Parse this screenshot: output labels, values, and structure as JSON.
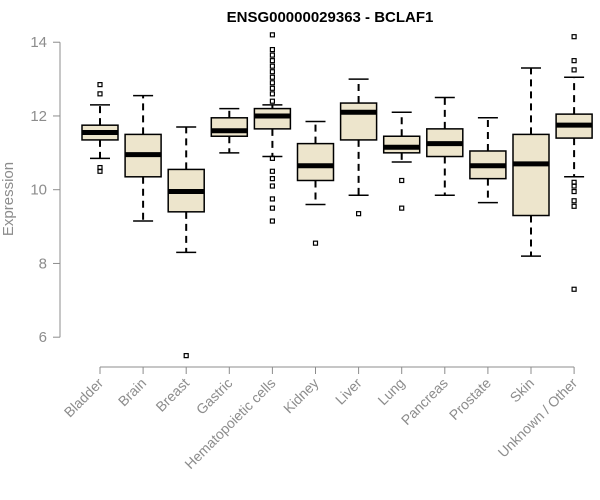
{
  "chart_data": {
    "type": "boxplot",
    "title": "ENSG00000029363 - BCLAF1",
    "ylabel": "Expression",
    "xlabel": "",
    "ylim": [
      5.3,
      14.25
    ],
    "yticks": [
      6,
      8,
      10,
      12,
      14
    ],
    "box_color": "#ede5cc",
    "line_color": "#000000",
    "axis_color": "#8c8c8c",
    "categories": [
      "Bladder",
      "Brain",
      "Breast",
      "Gastric",
      "Hematopoietic cells",
      "Kidney",
      "Liver",
      "Lung",
      "Pancreas",
      "Prostate",
      "Skin",
      "Unknown / Other"
    ],
    "boxes": [
      {
        "whisker_low": 10.85,
        "q1": 11.35,
        "median": 11.55,
        "q3": 11.75,
        "whisker_high": 12.3,
        "outliers": [
          10.5,
          10.6,
          12.6,
          12.85
        ]
      },
      {
        "whisker_low": 9.15,
        "q1": 10.35,
        "median": 10.95,
        "q3": 11.5,
        "whisker_high": 12.55,
        "outliers": []
      },
      {
        "whisker_low": 8.3,
        "q1": 9.4,
        "median": 9.95,
        "q3": 10.55,
        "whisker_high": 11.7,
        "outliers": [
          5.5
        ]
      },
      {
        "whisker_low": 11.0,
        "q1": 11.45,
        "median": 11.6,
        "q3": 11.95,
        "whisker_high": 12.2,
        "outliers": []
      },
      {
        "whisker_low": 10.9,
        "q1": 11.65,
        "median": 12.0,
        "q3": 12.2,
        "whisker_high": 12.3,
        "outliers": [
          9.15,
          9.5,
          9.75,
          10.1,
          10.3,
          10.5,
          10.85,
          12.4,
          12.6,
          12.75,
          12.9,
          13.05,
          13.2,
          13.35,
          13.5,
          13.65,
          13.8,
          14.2
        ]
      },
      {
        "whisker_low": 9.6,
        "q1": 10.25,
        "median": 10.65,
        "q3": 11.25,
        "whisker_high": 11.85,
        "outliers": [
          8.55
        ]
      },
      {
        "whisker_low": 9.85,
        "q1": 11.35,
        "median": 12.1,
        "q3": 12.35,
        "whisker_high": 13.0,
        "outliers": [
          9.35
        ]
      },
      {
        "whisker_low": 10.75,
        "q1": 11.0,
        "median": 11.15,
        "q3": 11.45,
        "whisker_high": 12.1,
        "outliers": [
          9.5,
          10.25
        ]
      },
      {
        "whisker_low": 9.85,
        "q1": 10.9,
        "median": 11.25,
        "q3": 11.65,
        "whisker_high": 12.5,
        "outliers": []
      },
      {
        "whisker_low": 9.65,
        "q1": 10.3,
        "median": 10.65,
        "q3": 11.05,
        "whisker_high": 11.95,
        "outliers": []
      },
      {
        "whisker_low": 8.2,
        "q1": 9.3,
        "median": 10.7,
        "q3": 11.5,
        "whisker_high": 13.3,
        "outliers": []
      },
      {
        "whisker_low": 10.35,
        "q1": 11.4,
        "median": 11.75,
        "q3": 12.05,
        "whisker_high": 13.05,
        "outliers": [
          7.3,
          9.55,
          9.7,
          9.95,
          10.1,
          10.2,
          13.25,
          13.5,
          14.15
        ]
      }
    ]
  }
}
